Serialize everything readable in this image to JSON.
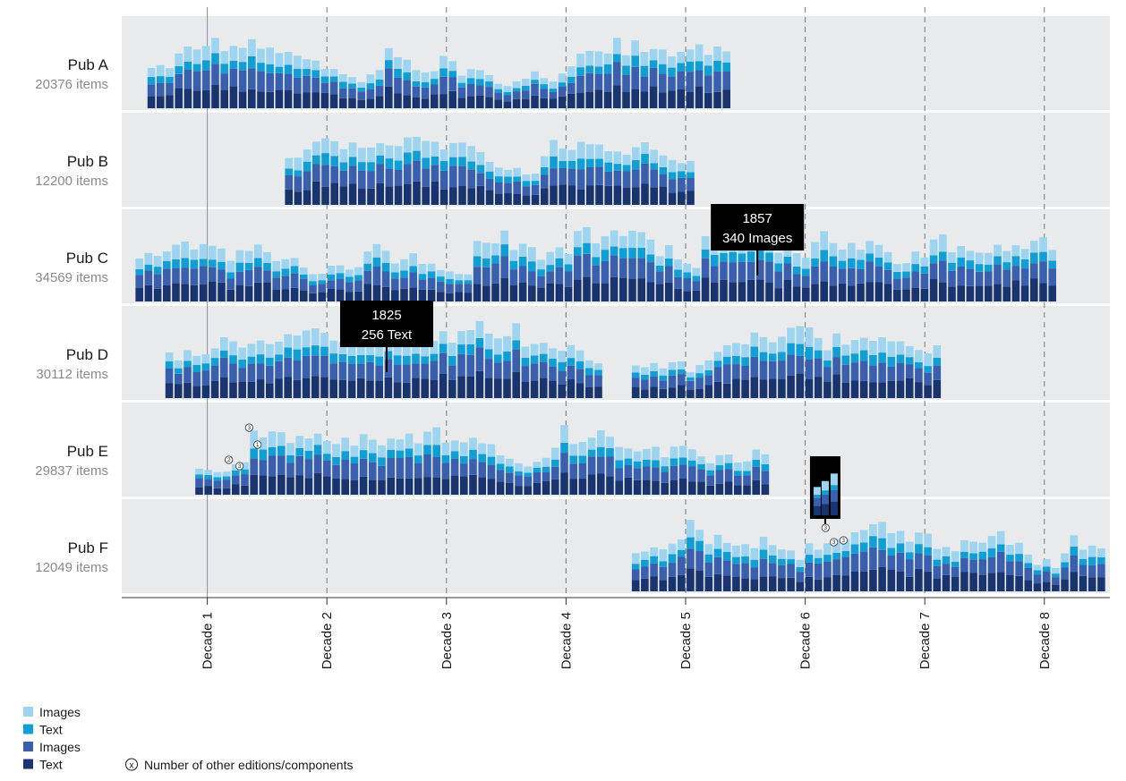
{
  "chart_data": {
    "type": "bar",
    "stacked": true,
    "title": "",
    "xlabel": "",
    "ylabel": "",
    "x_ticks": [
      "Decade 1",
      "Decade 2",
      "Decade 3",
      "Decade 4",
      "Decade 5",
      "Decade 6",
      "Decade 7",
      "Decade 8"
    ],
    "grid": "dashed vertical lines at each decade",
    "colors": [
      "#1a3470",
      "#3a5fad",
      "#0f9fd4",
      "#9dd4ef"
    ],
    "legend": {
      "placement": "bottom-left",
      "items": [
        {
          "label": "Images",
          "color": "#9dd4ef"
        },
        {
          "label": "Text",
          "color": "#0f9fd4"
        },
        {
          "label": "Images",
          "color": "#3a5fad"
        },
        {
          "label": "Text",
          "color": "#1a3470"
        }
      ],
      "note_symbol": "x",
      "note": "Number of other editions/components"
    },
    "publications": [
      {
        "name": "Pub A",
        "count": "20376 items",
        "start": 0.5,
        "end": 5.4,
        "seed": 11
      },
      {
        "name": "Pub B",
        "count": "12200 items",
        "start": 1.65,
        "end": 5.05,
        "seed": 23
      },
      {
        "name": "Pub C",
        "count": "34569 items",
        "start": 0.4,
        "end": 8.1,
        "seed": 37
      },
      {
        "name": "Pub D",
        "count": "30112 items",
        "start": 0.65,
        "end": 4.3,
        "gap": [
          4.3,
          4.55
        ],
        "start2": 4.55,
        "end2": 7.15,
        "seed": 41
      },
      {
        "name": "Pub  E",
        "count": "29837 items",
        "start": 0.9,
        "end": 5.7,
        "seed": 53
      },
      {
        "name": "Pub F",
        "count": "12049 items",
        "start": 4.55,
        "end": 8.5,
        "seed": 67
      }
    ],
    "tooltips": [
      {
        "row": 2,
        "decade": 5.6,
        "title": "1857",
        "detail": "340 Images"
      },
      {
        "row": 3,
        "decade": 2.5,
        "title": "1825",
        "detail": "256 Text"
      }
    ],
    "badges": [
      {
        "row": 4,
        "decade": 1.35,
        "label": "3"
      },
      {
        "row": 4,
        "decade": 1.42,
        "label": "1"
      },
      {
        "row": 4,
        "decade": 1.18,
        "label": "2"
      },
      {
        "row": 4,
        "decade": 1.27,
        "label": "3"
      },
      {
        "row": 5,
        "decade": 6.17,
        "label": "3"
      },
      {
        "row": 5,
        "decade": 6.24,
        "label": "3"
      },
      {
        "row": 5,
        "decade": 6.32,
        "label": "3"
      }
    ]
  }
}
